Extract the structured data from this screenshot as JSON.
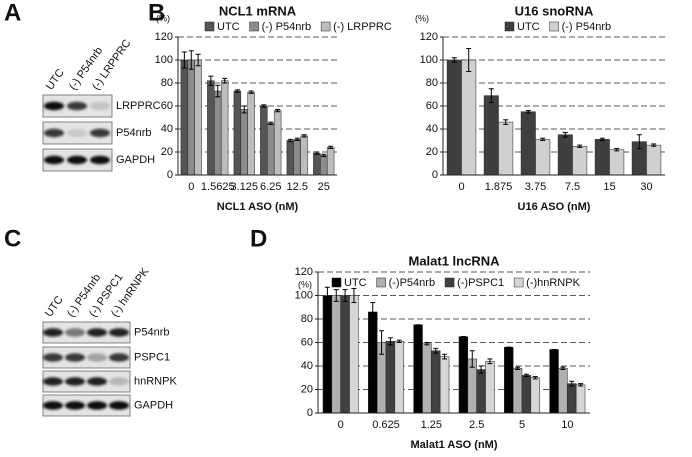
{
  "panel_labels": [
    "A",
    "B",
    "C",
    "D"
  ],
  "blots": [
    {
      "lanes": [
        "UTC",
        "(-) P54nrb",
        "(-) LRPPRC"
      ],
      "rows": [
        "LRPPRC",
        "P54nrb",
        "GAPDH"
      ]
    },
    {
      "lanes": [
        "UTC",
        "(-) P54nrb",
        "(-) PSPC1",
        "(-) hnRNPK"
      ],
      "rows": [
        "P54nrb",
        "PSPC1",
        "hnRNPK",
        "GAPDH"
      ]
    }
  ],
  "chart_data": [
    {
      "type": "bar",
      "title": "NCL1 mRNA",
      "y_unit": "(%)",
      "x_label": "NCL1 ASO (nM)",
      "categories": [
        "0",
        "1.5625",
        "3.125",
        "6.25",
        "12.5",
        "25"
      ],
      "series": [
        {
          "name": "UTC",
          "color": "#555555",
          "values": [
            100,
            82,
            73,
            60,
            30,
            19
          ],
          "errors": [
            7,
            4,
            1,
            1,
            1,
            1
          ]
        },
        {
          "name": "(-) P54nrb",
          "color": "#8c8c8c",
          "values": [
            100,
            73,
            57,
            45,
            31,
            17
          ],
          "errors": [
            8,
            5,
            3,
            1,
            1,
            1
          ]
        },
        {
          "name": "(-) LRPPRC",
          "color": "#bdbdbd",
          "values": [
            100,
            82,
            72,
            56,
            34,
            24
          ],
          "errors": [
            5,
            2,
            1,
            1,
            1,
            1
          ]
        }
      ],
      "ylim": [
        0,
        120
      ],
      "yticks": [
        0,
        20,
        40,
        60,
        80,
        100,
        120
      ],
      "grid": true
    },
    {
      "type": "bar",
      "title": "U16 snoRNA",
      "y_unit": "(%)",
      "x_label": "U16 ASO (nM)",
      "categories": [
        "0",
        "1.875",
        "3.75",
        "7.5",
        "15",
        "30"
      ],
      "series": [
        {
          "name": "UTC",
          "color": "#3f3f3f",
          "values": [
            100,
            69,
            55,
            35,
            31,
            29
          ],
          "errors": [
            2,
            6,
            1,
            2,
            1,
            6
          ]
        },
        {
          "name": "(-) P54nrb",
          "color": "#d0d0d0",
          "values": [
            100,
            46,
            31,
            25,
            22,
            26
          ],
          "errors": [
            10,
            2,
            1,
            1,
            1,
            1
          ]
        }
      ],
      "ylim": [
        0,
        120
      ],
      "yticks": [
        0,
        20,
        40,
        60,
        80,
        100,
        120
      ],
      "grid": true
    },
    {
      "type": "bar",
      "title": "Malat1 lncRNA",
      "y_unit": "(%)",
      "x_label": "Malat1 ASO (nM)",
      "categories": [
        "0",
        "0.625",
        "1.25",
        "2.5",
        "5",
        "10"
      ],
      "series": [
        {
          "name": "UTC",
          "color": "#000000",
          "values": [
            100,
            86,
            75,
            65,
            56,
            54
          ],
          "errors": [
            7,
            8,
            0,
            0,
            0,
            0
          ]
        },
        {
          "name": "(-)P54nrb",
          "color": "#b0b0b0",
          "values": [
            100,
            60,
            59,
            46,
            38,
            38
          ],
          "errors": [
            5,
            10,
            1,
            7,
            1,
            1
          ]
        },
        {
          "name": "(-)PSPC1",
          "color": "#404040",
          "values": [
            100,
            61,
            53,
            37,
            32,
            25
          ],
          "errors": [
            5,
            3,
            2,
            3,
            1,
            2
          ]
        },
        {
          "name": "(-)hnRNPK",
          "color": "#d6d6d6",
          "values": [
            100,
            61,
            48,
            44,
            30,
            24
          ],
          "errors": [
            6,
            1,
            2,
            2,
            1,
            1
          ]
        }
      ],
      "ylim": [
        0,
        120
      ],
      "yticks": [
        0,
        20,
        40,
        60,
        80,
        100,
        120
      ],
      "grid": true
    }
  ]
}
